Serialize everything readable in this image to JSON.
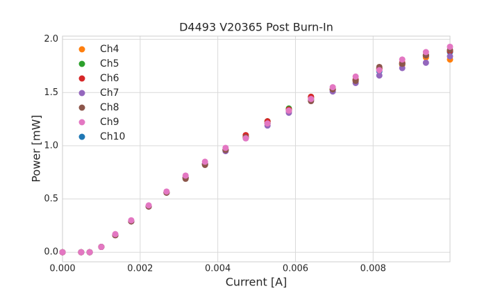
{
  "chart_data": {
    "type": "scatter",
    "title": "D4493 V20365 Post Burn-In",
    "x_label": "Current [A]",
    "y_label": "Power [mW]",
    "x": [
      0,
      0.00048,
      0.0007,
      0.001,
      0.00136,
      0.00177,
      0.00222,
      0.00268,
      0.00317,
      0.00367,
      0.0042,
      0.00472,
      0.00528,
      0.00583,
      0.0064,
      0.00696,
      0.00755,
      0.00816,
      0.00875,
      0.00936,
      0.00998
    ],
    "series": [
      {
        "name": "Ch4",
        "color": "#ff7f0e",
        "values": [
          0,
          0,
          0,
          0.05,
          0.16,
          0.29,
          0.43,
          0.56,
          0.7,
          0.83,
          0.96,
          1.08,
          1.22,
          1.34,
          1.45,
          1.53,
          1.61,
          1.72,
          1.76,
          1.83,
          1.81
        ]
      },
      {
        "name": "Ch5",
        "color": "#2ca02c",
        "values": [
          0,
          0,
          0,
          0.05,
          0.16,
          0.29,
          0.43,
          0.56,
          0.7,
          0.83,
          0.96,
          1.08,
          1.23,
          1.35,
          1.46,
          1.53,
          1.62,
          1.72,
          1.77,
          1.85,
          1.89
        ]
      },
      {
        "name": "Ch6",
        "color": "#d62728",
        "values": [
          0,
          0,
          0,
          0.05,
          0.16,
          0.29,
          0.43,
          0.56,
          0.7,
          0.83,
          0.96,
          1.1,
          1.23,
          1.34,
          1.46,
          1.53,
          1.62,
          1.73,
          1.78,
          1.85,
          1.89
        ]
      },
      {
        "name": "Ch7",
        "color": "#9467bd",
        "values": [
          0,
          0,
          0,
          0.05,
          0.16,
          0.29,
          0.43,
          0.56,
          0.7,
          0.83,
          0.95,
          1.07,
          1.19,
          1.31,
          1.43,
          1.51,
          1.59,
          1.66,
          1.73,
          1.78,
          1.84
        ]
      },
      {
        "name": "Ch8",
        "color": "#8c564b",
        "values": [
          0,
          0,
          0,
          0.05,
          0.16,
          0.29,
          0.43,
          0.56,
          0.69,
          0.82,
          0.96,
          1.08,
          1.21,
          1.33,
          1.42,
          1.53,
          1.61,
          1.74,
          1.77,
          1.85,
          1.9
        ]
      },
      {
        "name": "Ch9",
        "color": "#e377c2",
        "values": [
          0,
          0,
          0,
          0.05,
          0.17,
          0.3,
          0.44,
          0.57,
          0.72,
          0.85,
          0.98,
          1.07,
          1.21,
          1.33,
          1.44,
          1.55,
          1.65,
          1.71,
          1.81,
          1.88,
          1.93
        ]
      },
      {
        "name": "Ch10",
        "color": "#1f77b4",
        "values": [
          0,
          0,
          0,
          0.05,
          0.16,
          0.29,
          0.43,
          0.56,
          0.7,
          0.83,
          0.96,
          1.08,
          1.21,
          1.33,
          1.44,
          1.53,
          1.62,
          1.7,
          1.77,
          1.84,
          1.88
        ]
      }
    ],
    "xlim": [
      0,
      0.00998
    ],
    "ylim": [
      -0.09,
      2.03
    ],
    "xticks": [
      {
        "value": 0,
        "label": "0.000"
      },
      {
        "value": 0.002,
        "label": "0.002"
      },
      {
        "value": 0.004,
        "label": "0.004"
      },
      {
        "value": 0.006,
        "label": "0.006"
      },
      {
        "value": 0.008,
        "label": "0.008"
      }
    ],
    "yticks": [
      {
        "value": 0,
        "label": "0.0"
      },
      {
        "value": 0.5,
        "label": "0.5"
      },
      {
        "value": 1,
        "label": "1.0"
      },
      {
        "value": 1.5,
        "label": "1.5"
      },
      {
        "value": 2,
        "label": "2.0"
      }
    ],
    "grid": true,
    "legend": "upper left"
  }
}
